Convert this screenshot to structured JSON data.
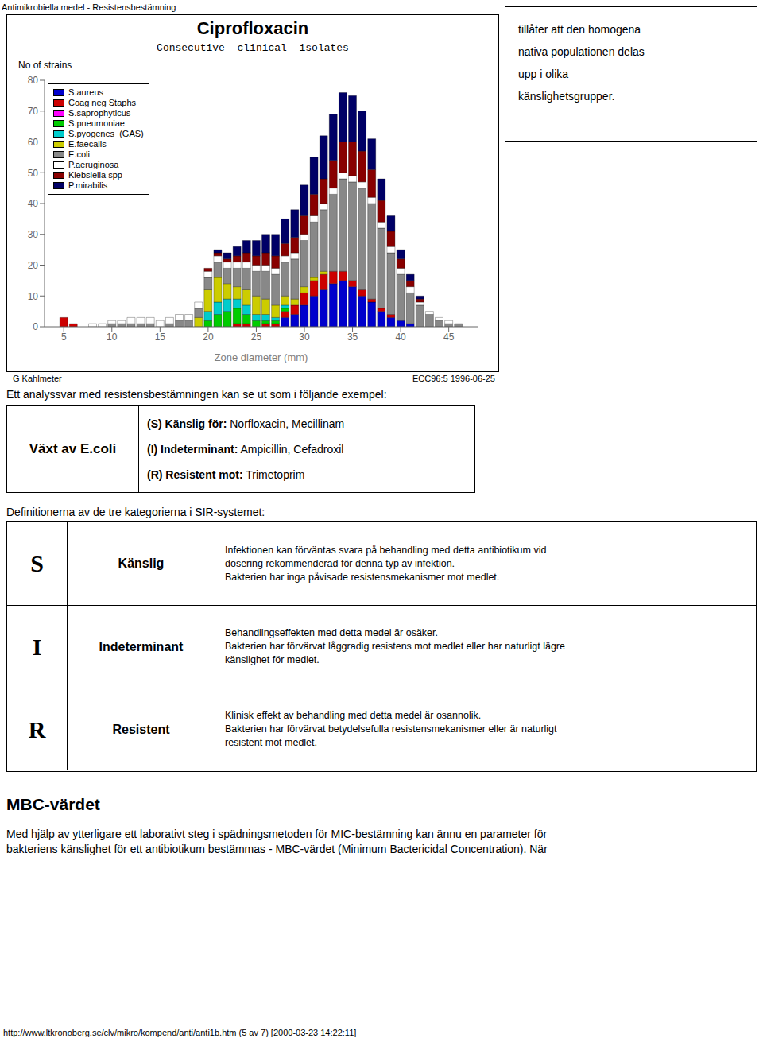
{
  "page_title": "Antimikrobiella medel - Resistensbestämning",
  "right_text_lines": [
    "tillåter att den homogena",
    "nativa populationen delas",
    "upp i olika",
    "känslighetsgrupper."
  ],
  "intro_text": "Ett analyssvar med resistensbestämningen kan se ut som i följande exempel:",
  "table1_left": "Växt av E.coli",
  "table1_rows": [
    {
      "label": "(S) Känslig för:",
      "value": "Norfloxacin, Mecillinam"
    },
    {
      "label": "(I) Indeterminant:",
      "value": "Ampicillin, Cefadroxil"
    },
    {
      "label": "(R) Resistent mot:",
      "value": "Trimetoprim"
    }
  ],
  "table2_title": "Definitionerna av de tre kategorierna i SIR-systemet:",
  "table2_rows": [
    {
      "letter": "S",
      "name": "Känslig",
      "desc": "Infektionen kan förväntas svara på behandling med detta antibiotikum vid\ndosering rekommenderad för denna typ av infektion.\nBakterien har inga påvisade resistensmekanismer mot medlet."
    },
    {
      "letter": "I",
      "name": "Indeterminant",
      "desc": "Behandlingseffekten med detta medel är osäker.\nBakterien har förvärvat låggradig resistens mot medlet eller har naturligt lägre\nkänslighet för medlet."
    },
    {
      "letter": "R",
      "name": "Resistent",
      "desc": "Klinisk effekt av behandling med detta medel är osannolik.\nBakterien har förvärvat betydelsefulla resistensmekanismer eller är naturligt\nresistent mot medlet."
    }
  ],
  "mbc_title": "MBC-värdet",
  "mbc_text_lines": [
    "Med hjälp av ytterligare ett laborativt steg i spädningsmetoden för MIC-bestämning kan ännu en parameter för",
    "bakteriens känslighet för ett antibiotikum bestämmas - MBC-värdet (Minimum Bactericidal Concentration). När"
  ],
  "footer_url": "http://www.ltkronoberg.se/clv/mikro/kompend/anti/anti1b.htm (5 av 7) [2000-03-23 14:22:11]",
  "chart_data": {
    "type": "bar",
    "title": "Ciprofloxacin",
    "subtitle": "Consecutive  clinical  isolates",
    "y_label": "No of strains",
    "x_label": "Zone  diameter  (mm)",
    "annotations": [
      "G Kahlmeter",
      "ECC96:5 1996-06-25"
    ],
    "stacked": true,
    "grid": false,
    "legend": "upper left",
    "x": [
      5,
      6,
      7,
      8,
      9,
      10,
      11,
      12,
      13,
      14,
      15,
      16,
      17,
      18,
      19,
      20,
      21,
      22,
      23,
      24,
      25,
      26,
      27,
      28,
      29,
      30,
      31,
      32,
      33,
      34,
      35,
      36,
      37,
      38,
      39,
      40,
      41,
      42,
      43,
      44,
      45,
      46,
      47
    ],
    "xlim": [
      3,
      48
    ],
    "xticks": [
      5,
      10,
      15,
      20,
      25,
      30,
      35,
      40,
      45
    ],
    "ylim": [
      0,
      80
    ],
    "yticks": [
      0,
      10,
      20,
      30,
      40,
      50,
      60,
      70,
      80
    ],
    "series": [
      {
        "name": "S.aureus",
        "color": "#0000CC",
        "values": [
          0,
          0,
          0,
          0,
          0,
          0,
          0,
          0,
          0,
          0,
          0,
          0,
          0,
          0,
          0,
          0,
          0,
          0,
          0,
          0,
          0,
          0,
          0,
          3,
          4,
          7,
          10,
          12,
          14,
          15,
          13,
          10,
          8,
          5,
          3,
          2,
          1,
          0,
          0,
          0,
          0,
          0,
          0
        ]
      },
      {
        "name": "Coag neg Staphs",
        "color": "#CC0000",
        "values": [
          3,
          1,
          0,
          0,
          0,
          0,
          0,
          0,
          0,
          0,
          0,
          0,
          0,
          0,
          0,
          0,
          0,
          0,
          1,
          1,
          0,
          1,
          1,
          2,
          3,
          4,
          5,
          5,
          4,
          3,
          2,
          2,
          1,
          1,
          1,
          0,
          0,
          0,
          0,
          0,
          0,
          0,
          0
        ]
      },
      {
        "name": "S.saprophyticus",
        "color": "#FF00FF",
        "values": [
          0,
          0,
          0,
          0,
          0,
          0,
          0,
          0,
          0,
          0,
          0,
          0,
          0,
          0,
          0,
          0,
          0,
          0,
          0,
          0,
          0,
          0,
          0,
          0,
          0,
          0,
          0,
          0,
          0,
          0,
          0,
          0,
          0,
          0,
          0,
          0,
          0,
          0,
          0,
          0,
          0,
          0,
          0
        ]
      },
      {
        "name": "S.pneumoniae",
        "color": "#00CC00",
        "values": [
          0,
          0,
          0,
          0,
          0,
          0,
          0,
          0,
          0,
          0,
          0,
          0,
          0,
          0,
          0,
          2,
          4,
          5,
          5,
          3,
          2,
          1,
          1,
          1,
          0,
          0,
          0,
          0,
          0,
          0,
          0,
          0,
          0,
          0,
          0,
          0,
          0,
          0,
          0,
          0,
          0,
          0,
          0
        ]
      },
      {
        "name": "S.pyogenes  (GAS)",
        "color": "#00CCCC",
        "values": [
          0,
          0,
          0,
          0,
          0,
          0,
          0,
          0,
          0,
          0,
          0,
          0,
          0,
          0,
          0,
          3,
          4,
          4,
          3,
          3,
          2,
          2,
          1,
          1,
          0,
          0,
          0,
          0,
          0,
          0,
          0,
          0,
          0,
          0,
          0,
          0,
          0,
          0,
          0,
          0,
          0,
          0,
          0
        ]
      },
      {
        "name": "E.faecalis",
        "color": "#CCCC00",
        "values": [
          0,
          0,
          0,
          0,
          0,
          0,
          0,
          0,
          0,
          0,
          0,
          0,
          0,
          0,
          3,
          7,
          8,
          5,
          4,
          5,
          6,
          5,
          4,
          3,
          2,
          2,
          1,
          1,
          0,
          0,
          0,
          0,
          0,
          0,
          0,
          0,
          0,
          0,
          0,
          0,
          0,
          0,
          0
        ]
      },
      {
        "name": "E.coli",
        "color": "#888888",
        "values": [
          0,
          0,
          0,
          0,
          0,
          1,
          1,
          1,
          1,
          1,
          0,
          1,
          2,
          2,
          3,
          4,
          5,
          5,
          6,
          7,
          8,
          9,
          10,
          11,
          13,
          15,
          18,
          20,
          25,
          30,
          32,
          33,
          31,
          26,
          20,
          15,
          10,
          7,
          4,
          2,
          1,
          1,
          0
        ]
      },
      {
        "name": "P.aeruginosa",
        "color": "#FFFFFF",
        "values": [
          0,
          0,
          0,
          1,
          1,
          1,
          1,
          2,
          2,
          2,
          2,
          2,
          2,
          2,
          2,
          2,
          2,
          2,
          2,
          2,
          2,
          2,
          2,
          2,
          2,
          2,
          2,
          2,
          2,
          2,
          2,
          2,
          2,
          2,
          2,
          2,
          2,
          1,
          1,
          1,
          1,
          0,
          0
        ]
      },
      {
        "name": "Klebsiella spp",
        "color": "#880000",
        "values": [
          0,
          0,
          0,
          0,
          0,
          0,
          0,
          0,
          0,
          0,
          0,
          0,
          0,
          0,
          0,
          1,
          1,
          1,
          2,
          3,
          3,
          4,
          4,
          4,
          5,
          6,
          7,
          8,
          9,
          10,
          11,
          10,
          9,
          7,
          5,
          3,
          2,
          1,
          0,
          0,
          0,
          0,
          0
        ]
      },
      {
        "name": "P.mirabilis",
        "color": "#000066",
        "values": [
          0,
          0,
          0,
          0,
          0,
          0,
          0,
          0,
          0,
          0,
          0,
          0,
          0,
          0,
          0,
          0,
          1,
          2,
          3,
          4,
          5,
          6,
          7,
          8,
          9,
          10,
          12,
          14,
          15,
          16,
          15,
          13,
          10,
          7,
          5,
          3,
          2,
          1,
          0,
          0,
          0,
          0,
          0
        ]
      }
    ]
  }
}
